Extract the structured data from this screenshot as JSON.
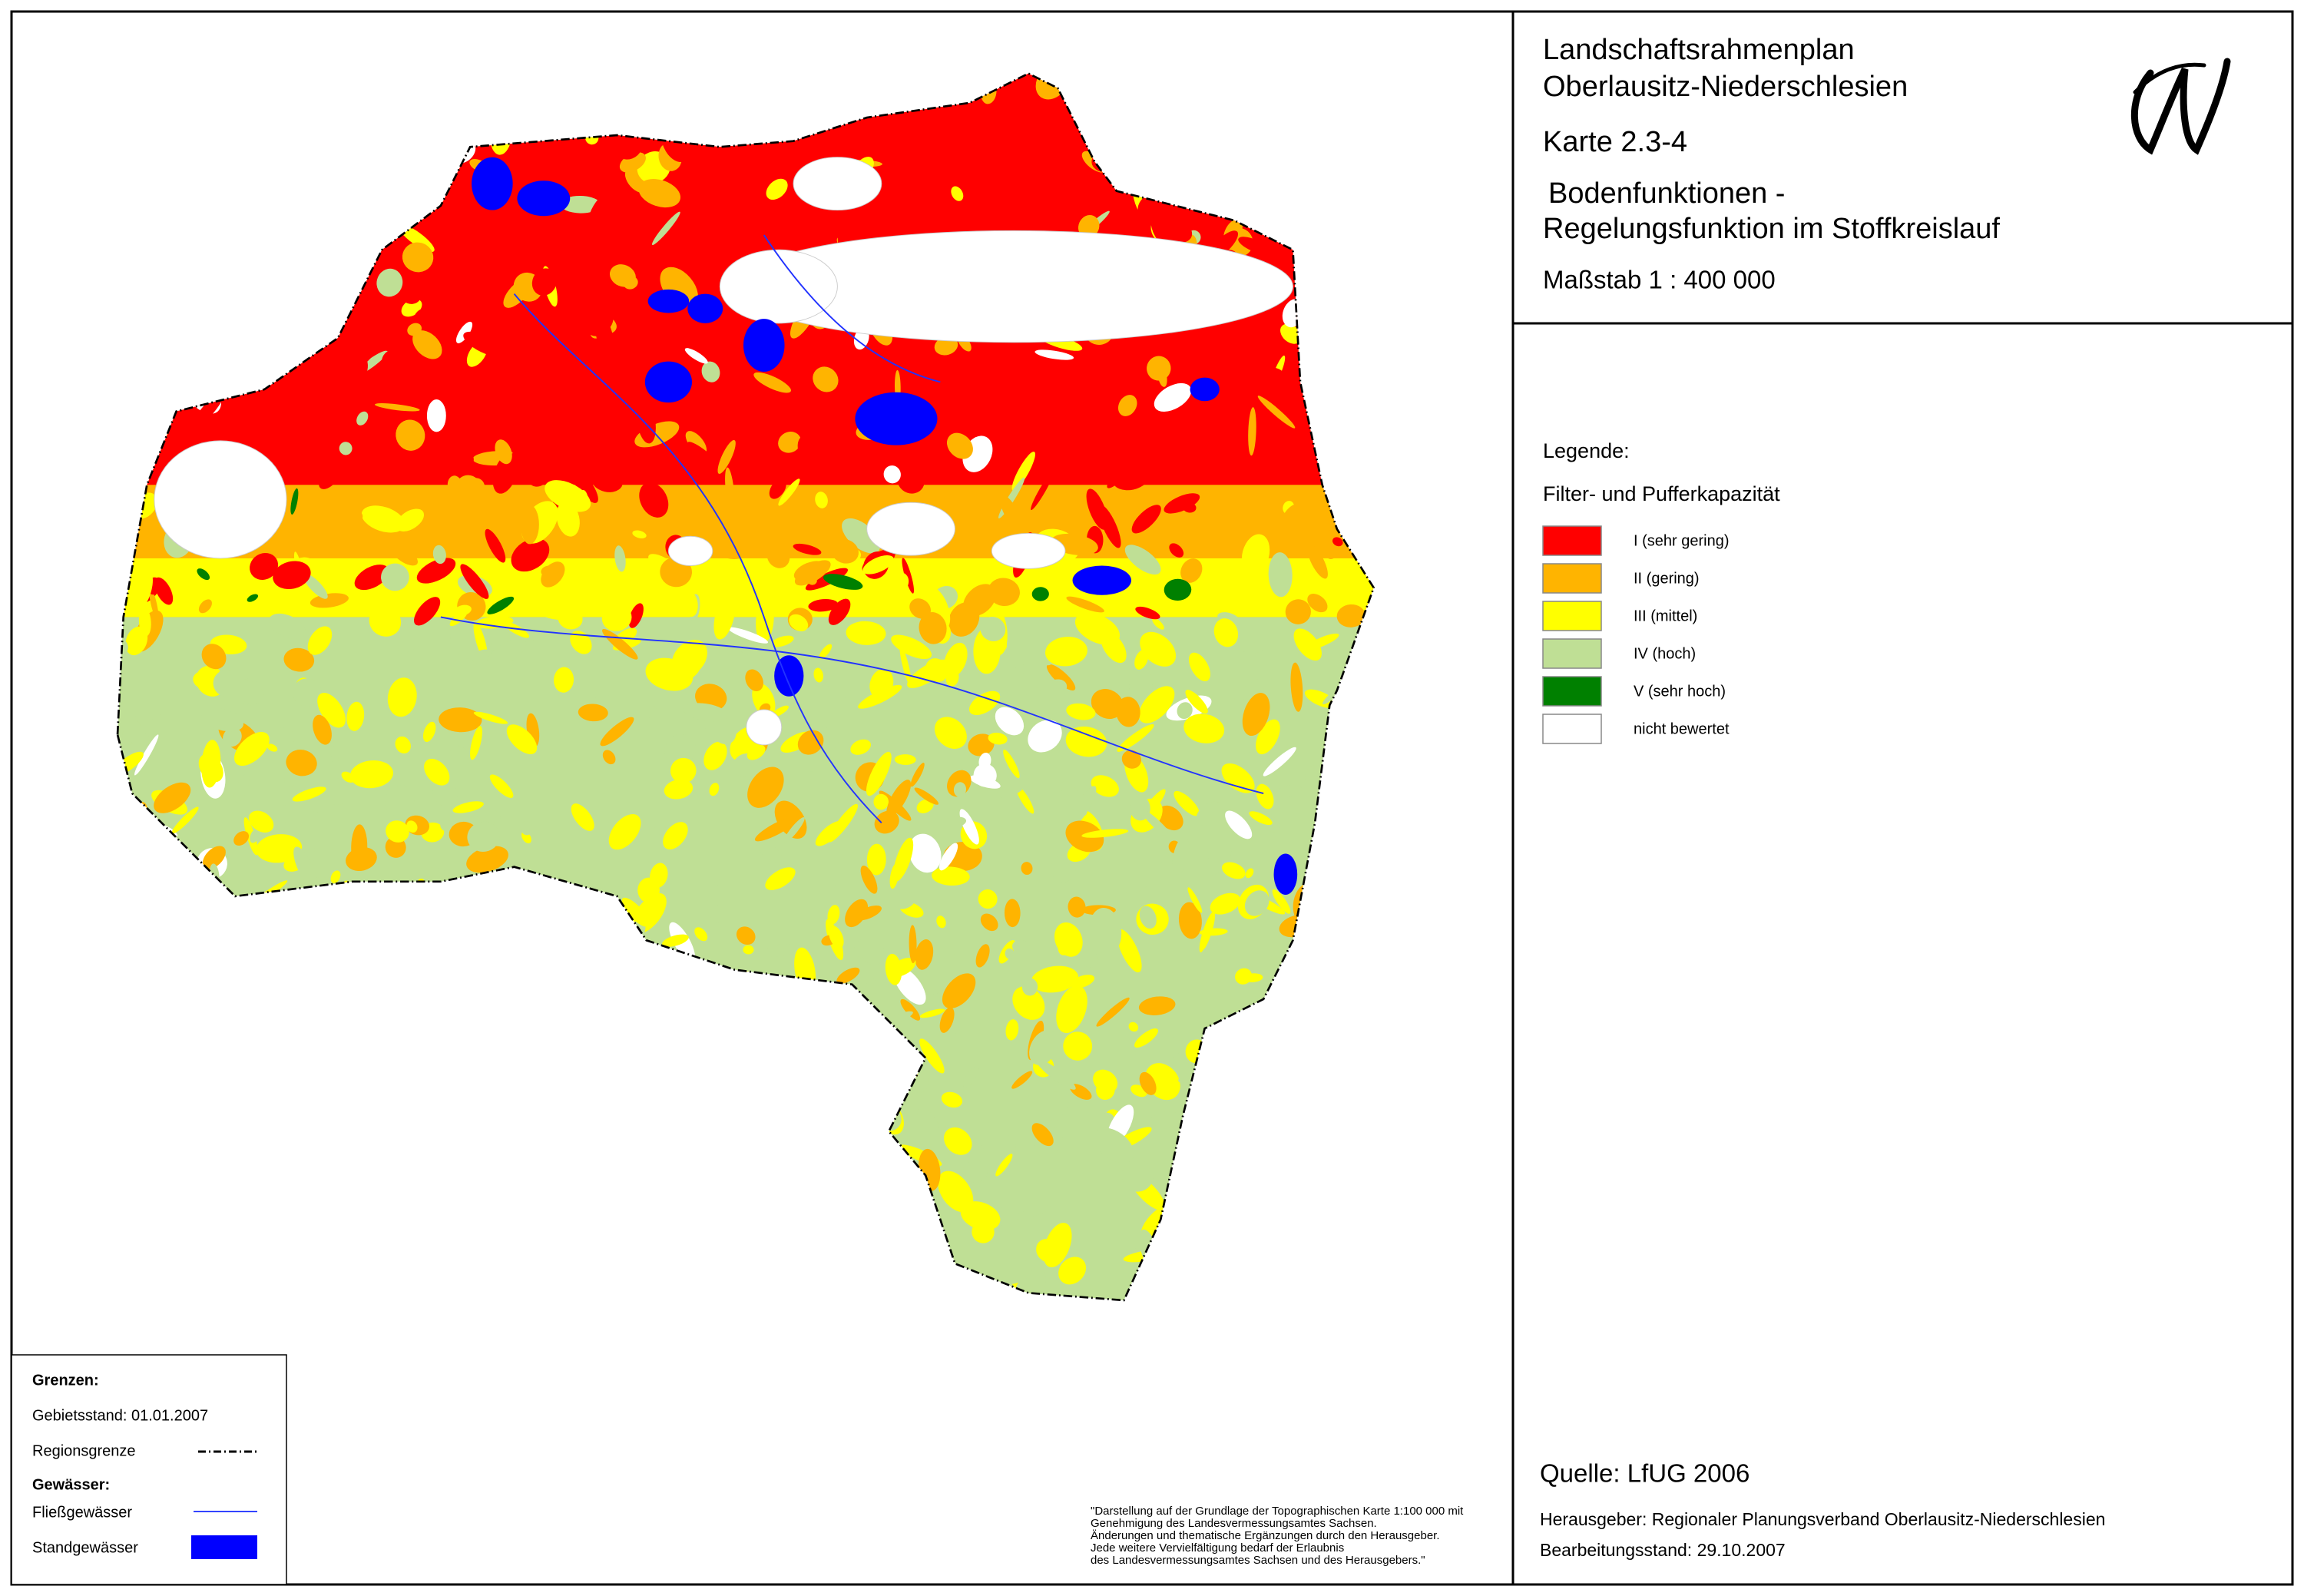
{
  "header": {
    "title_lines": [
      "Landschaftsrahmenplan",
      "Oberlausitz-Niederschlesien"
    ],
    "map_number": "Karte 2.3-4",
    "subtitle_lines": [
      "Bodenfunktionen -",
      "Regelungsfunktion im Stoffkreislauf"
    ],
    "scale": "Maßstab 1 : 400 000"
  },
  "legend": {
    "title": "Legende:",
    "subtitle": "Filter- und Pufferkapazität",
    "items": [
      {
        "label": "I (sehr gering)",
        "color": "#ff0000"
      },
      {
        "label": "II (gering)",
        "color": "#ffb400"
      },
      {
        "label": "III (mittel)",
        "color": "#ffff00"
      },
      {
        "label": "IV (hoch)",
        "color": "#bfdf95"
      },
      {
        "label": "V (sehr hoch)",
        "color": "#008000"
      },
      {
        "label": "nicht bewertet",
        "color": "#ffffff"
      }
    ]
  },
  "boundaries": {
    "title": "Grenzen:",
    "status": "Gebietsstand: 01.01.2007",
    "region_border": "Regionsgrenze",
    "waters_title": "Gewässer:",
    "streams": "Fließgewässer",
    "lakes": "Standgewässer"
  },
  "copyright_lines": [
    "\"Darstellung auf der Grundlage der Topographischen Karte 1:100 000 mit",
    "Genehmigung des Landesvermessungsamtes Sachsen.",
    "Änderungen und thematische Ergänzungen durch den Herausgeber.",
    "Jede weitere Vervielfältigung bedarf  der Erlaubnis",
    "des Landesvermessungsamtes Sachsen und des Herausgebers.\""
  ],
  "footer": {
    "source": "Quelle: LfUG  2006",
    "publisher": "Herausgeber: Regionaler Planungsverband Oberlausitz-Niederschlesien",
    "date": "Bearbeitungsstand: 29.10.2007"
  }
}
